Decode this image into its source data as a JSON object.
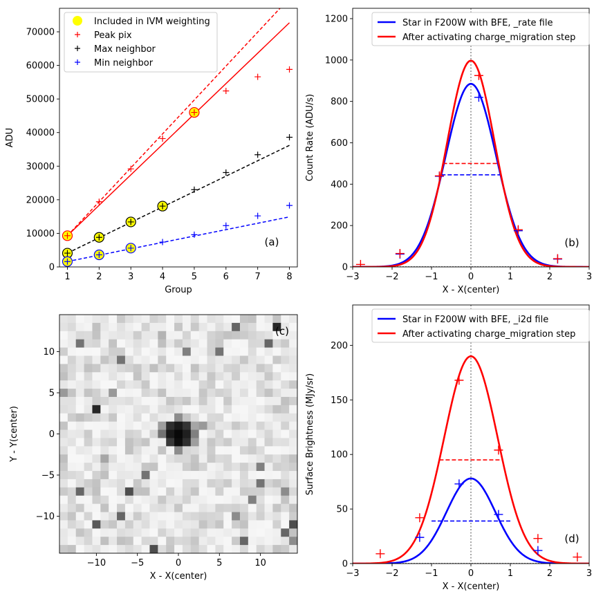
{
  "chart_data": [
    {
      "id": "a",
      "type": "scatter",
      "panel_label": "(a)",
      "xlabel": "Group",
      "ylabel": "ADU",
      "xlim": [
        0.75,
        8.25
      ],
      "ylim": [
        0,
        77000
      ],
      "xticks": [
        1,
        2,
        3,
        4,
        5,
        6,
        7,
        8
      ],
      "xtick_labels": [
        "1",
        "2",
        "3",
        "4",
        "5",
        "6",
        "7",
        "8"
      ],
      "yticks": [
        0,
        10000,
        20000,
        30000,
        40000,
        50000,
        60000,
        70000
      ],
      "ytick_labels": [
        "0",
        "10000",
        "20000",
        "30000",
        "40000",
        "50000",
        "60000",
        "70000"
      ],
      "legend": [
        {
          "label": "Included in IVM weighting",
          "marker": "circle",
          "color": "#ffff00"
        },
        {
          "label": "Peak pix",
          "marker": "plus",
          "color": "#ff0000"
        },
        {
          "label": "Max neighbor",
          "marker": "plus",
          "color": "#000000"
        },
        {
          "label": "Min neighbor",
          "marker": "plus",
          "color": "#0000ff"
        }
      ],
      "series": [
        {
          "name": "Peak pix",
          "color": "#ff0000",
          "x": [
            1,
            2,
            3,
            4,
            5,
            6,
            7,
            8
          ],
          "y": [
            9300,
            19400,
            29200,
            38200,
            46000,
            52400,
            56600,
            58800
          ],
          "included_groups": [
            1,
            5
          ]
        },
        {
          "name": "Max neighbor",
          "color": "#000000",
          "x": [
            1,
            2,
            3,
            4,
            5,
            6,
            7,
            8
          ],
          "y": [
            4100,
            8800,
            13400,
            18100,
            23000,
            28100,
            33400,
            38600
          ],
          "included_groups": [
            1,
            2,
            3,
            4
          ]
        },
        {
          "name": "Min neighbor",
          "color": "#0000ff",
          "x": [
            1,
            2,
            3,
            4,
            5,
            6,
            7,
            8
          ],
          "y": [
            1600,
            3600,
            5600,
            7400,
            9600,
            12300,
            15200,
            18300
          ],
          "included_groups": [
            1,
            2,
            3
          ]
        }
      ],
      "fit_lines": [
        {
          "series": "Peak pix",
          "style": "solid",
          "color": "#ff0000",
          "x": [
            1,
            8
          ],
          "y": [
            9300,
            72700
          ]
        },
        {
          "series": "Peak pix",
          "style": "dashed",
          "color": "#ff0000",
          "x": [
            1,
            8
          ],
          "y": [
            9300,
            80000
          ]
        },
        {
          "series": "Max neighbor",
          "style": "dashed",
          "color": "#000000",
          "x": [
            1,
            8
          ],
          "y": [
            4100,
            36200
          ]
        },
        {
          "series": "Min neighbor",
          "style": "dashed",
          "color": "#0000ff",
          "x": [
            1,
            8
          ],
          "y": [
            1600,
            14900
          ]
        }
      ]
    },
    {
      "id": "b",
      "type": "line",
      "panel_label": "(b)",
      "xlabel": "X - X(center)",
      "ylabel": "Count Rate (ADU/s)",
      "xlim": [
        -3,
        3
      ],
      "ylim": [
        0,
        1250
      ],
      "xticks": [
        -3,
        -2,
        -1,
        0,
        1,
        2,
        3
      ],
      "xtick_labels": [
        "−3",
        "−2",
        "−1",
        "0",
        "1",
        "2",
        "3"
      ],
      "yticks": [
        0,
        200,
        400,
        600,
        800,
        1000,
        1200
      ],
      "ytick_labels": [
        "0",
        "200",
        "400",
        "600",
        "800",
        "1000",
        "1200"
      ],
      "center_line_x": 0,
      "series": [
        {
          "name": "Star in F200W with BFE, _rate file",
          "color": "#0000ff",
          "amplitude": 885,
          "sigma": 0.64,
          "fwhm_level": 445,
          "fwhm_x": [
            -0.75,
            0.75
          ],
          "points_x": [
            -1.8,
            -0.8,
            0.2,
            1.2,
            2.2
          ],
          "points_y": [
            62,
            438,
            820,
            175,
            38
          ]
        },
        {
          "name": "After activating charge_migration step",
          "color": "#ff0000",
          "amplitude": 997,
          "sigma": 0.6,
          "fwhm_level": 500,
          "fwhm_x": [
            -0.71,
            0.71
          ],
          "points_x": [
            -2.8,
            -1.8,
            -0.8,
            0.2,
            1.2,
            2.2
          ],
          "points_y": [
            12,
            65,
            440,
            925,
            180,
            40
          ]
        }
      ]
    },
    {
      "id": "c",
      "type": "heatmap",
      "panel_label": "(c)",
      "xlabel": "X - X(center)",
      "ylabel": "Y - Y(center)",
      "xlim": [
        -14.5,
        14.5
      ],
      "ylim": [
        -14.5,
        14.5
      ],
      "xticks": [
        -10,
        -5,
        0,
        5,
        10
      ],
      "xtick_labels": [
        "−10",
        "−5",
        "0",
        "5",
        "10"
      ],
      "yticks": [
        -10,
        -5,
        0,
        5,
        10
      ],
      "ytick_labels": [
        "−10",
        "−5",
        "0",
        "5",
        "10"
      ],
      "colormap": "gray_r",
      "dark_pixels": [
        [
          0,
          0,
          0.97
        ],
        [
          -1,
          0,
          0.9
        ],
        [
          1,
          0,
          0.88
        ],
        [
          0,
          1,
          0.9
        ],
        [
          0,
          -1,
          0.95
        ],
        [
          -1,
          1,
          0.82
        ],
        [
          1,
          1,
          0.8
        ],
        [
          -1,
          -1,
          0.78
        ],
        [
          1,
          -1,
          0.82
        ],
        [
          -2,
          0,
          0.55
        ],
        [
          2,
          0,
          0.5
        ],
        [
          0,
          2,
          0.45
        ],
        [
          0,
          -2,
          0.45
        ],
        [
          -2,
          1,
          0.38
        ],
        [
          2,
          1,
          0.35
        ],
        [
          2,
          -1,
          0.38
        ],
        [
          -10,
          3,
          0.85
        ],
        [
          -12,
          -7,
          0.6
        ],
        [
          -7,
          -10,
          0.6
        ],
        [
          -6,
          -7,
          0.7
        ],
        [
          -7,
          9,
          0.55
        ],
        [
          -10,
          -11,
          0.65
        ],
        [
          -3,
          -14,
          0.7
        ],
        [
          7,
          13,
          0.6
        ],
        [
          12,
          13,
          0.85
        ],
        [
          11,
          11,
          0.6
        ],
        [
          -12,
          11,
          0.55
        ],
        [
          5,
          10,
          0.55
        ],
        [
          1,
          10,
          0.5
        ],
        [
          14,
          -11,
          0.7
        ],
        [
          13,
          -12,
          0.6
        ],
        [
          7,
          -10,
          0.45
        ],
        [
          8,
          -13,
          0.6
        ],
        [
          10,
          -6,
          0.55
        ],
        [
          9,
          -8,
          0.5
        ],
        [
          14,
          -13,
          0.45
        ],
        [
          -8,
          5,
          0.4
        ],
        [
          -4,
          -5,
          0.55
        ],
        [
          10,
          -4,
          0.5
        ],
        [
          13,
          -7,
          0.45
        ],
        [
          -9,
          -3,
          0.35
        ],
        [
          3,
          1,
          0.4
        ],
        [
          -2,
          12,
          0.3
        ],
        [
          -14,
          5,
          0.4
        ]
      ]
    },
    {
      "id": "d",
      "type": "line",
      "panel_label": "(d)",
      "xlabel": "X - X(center)",
      "ylabel": "Surface Brightness (MJy/sr)",
      "xlim": [
        -3,
        3
      ],
      "ylim": [
        0,
        237
      ],
      "xticks": [
        -3,
        -2,
        -1,
        0,
        1,
        2,
        3
      ],
      "xtick_labels": [
        "−3",
        "−2",
        "−1",
        "0",
        "1",
        "2",
        "3"
      ],
      "yticks": [
        0,
        50,
        100,
        150,
        200
      ],
      "ytick_labels": [
        "0",
        "50",
        "100",
        "150",
        "200"
      ],
      "center_line_x": 0,
      "series": [
        {
          "name": "Star in F200W with BFE, _i2d file",
          "color": "#0000ff",
          "amplitude": 78,
          "sigma": 0.62,
          "fwhm_level": 39,
          "fwhm_x": [
            -1.0,
            1.0
          ],
          "points_x": [
            -1.3,
            -0.3,
            0.7,
            1.7
          ],
          "points_y": [
            24,
            73,
            45,
            12
          ]
        },
        {
          "name": "After activating charge_migration step",
          "color": "#ff0000",
          "amplitude": 190,
          "sigma": 0.68,
          "fwhm_level": 95,
          "fwhm_x": [
            -0.8,
            0.8
          ],
          "points_x": [
            -2.3,
            -1.3,
            -0.3,
            0.7,
            1.7,
            2.7
          ],
          "points_y": [
            9,
            42,
            168,
            104,
            23,
            6
          ]
        }
      ]
    }
  ]
}
